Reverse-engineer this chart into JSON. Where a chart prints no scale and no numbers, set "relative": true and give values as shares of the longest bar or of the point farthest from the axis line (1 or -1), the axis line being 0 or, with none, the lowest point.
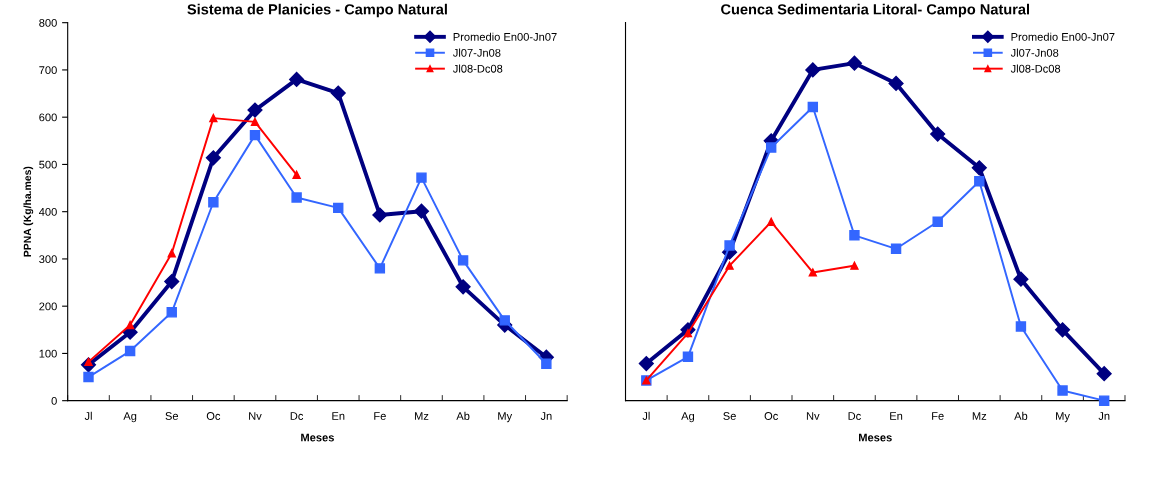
{
  "chart_data": [
    {
      "type": "line",
      "title": "Sistema de Planicies - Campo Natural",
      "xlabel": "Meses",
      "ylabel": "PPNA (Kg/ha.mes)",
      "categories": [
        "Jl",
        "Ag",
        "Se",
        "Oc",
        "Nv",
        "Dc",
        "En",
        "Fe",
        "Mz",
        "Ab",
        "My",
        "Jn"
      ],
      "ylim": [
        0,
        800
      ],
      "yticks": [
        0,
        100,
        200,
        300,
        400,
        500,
        600,
        700,
        800
      ],
      "legend": "top right",
      "grid": false,
      "series": [
        {
          "name": "Promedio En00-Jn07",
          "color": "#000080",
          "marker": "diamond",
          "values": [
            76,
            145,
            252,
            514,
            615,
            680,
            651,
            393,
            401,
            241,
            160,
            92
          ]
        },
        {
          "name": "Jl07-Jn08",
          "color": "#3366ff",
          "marker": "square",
          "values": [
            50,
            105,
            187,
            420,
            562,
            430,
            408,
            280,
            472,
            297,
            170,
            78
          ]
        },
        {
          "name": "Jl08-Dc08",
          "color": "#ff0000",
          "marker": "triangle",
          "values": [
            82,
            160,
            312,
            598,
            590,
            478,
            null,
            null,
            null,
            null,
            null,
            null
          ]
        }
      ]
    },
    {
      "type": "line",
      "title": "Cuenca Sedimentaria Litoral- Campo Natural",
      "xlabel": "Meses",
      "relative": true,
      "categories": [
        "Jl",
        "Ag",
        "Se",
        "Oc",
        "Nv",
        "Dc",
        "En",
        "Fe",
        "Mz",
        "Ab",
        "My",
        "Jn"
      ],
      "legend": "top right",
      "grid": false,
      "series": [
        {
          "name": "Promedio En00-Jn07",
          "color": "#000080",
          "marker": "diamond",
          "values": [
            0.11,
            0.21,
            0.44,
            0.77,
            0.98,
            1,
            0.94,
            0.79,
            0.69,
            0.36,
            0.21,
            0.08
          ]
        },
        {
          "name": "Jl07-Jn08",
          "color": "#3366ff",
          "marker": "square",
          "values": [
            0.06,
            0.13,
            0.46,
            0.75,
            0.87,
            0.49,
            0.45,
            0.53,
            0.65,
            0.22,
            0.03,
            0.0
          ]
        },
        {
          "name": "Jl08-Dc08",
          "color": "#ff0000",
          "marker": "triangle",
          "values": [
            0.06,
            0.2,
            0.4,
            0.53,
            0.38,
            0.4,
            null,
            null,
            null,
            null,
            null,
            null
          ]
        }
      ]
    }
  ]
}
